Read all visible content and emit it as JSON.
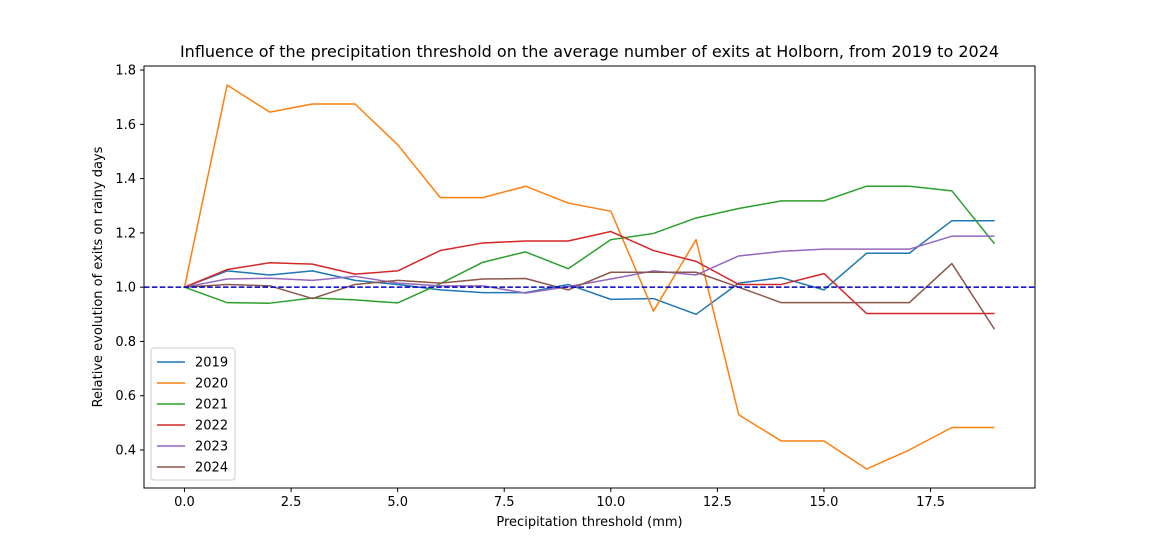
{
  "chart_data": {
    "type": "line",
    "title": "Influence of the precipitation threshold on the average number of exits at Holborn, from 2019 to 2024",
    "xlabel": "Precipitation threshold (mm)",
    "ylabel": "Relative evolution of exits on rainy days",
    "xlim": [
      -0.95,
      19.95
    ],
    "ylim": [
      0.26,
      1.815
    ],
    "x_ticks": [
      0.0,
      2.5,
      5.0,
      7.5,
      10.0,
      12.5,
      15.0,
      17.5
    ],
    "x_tick_labels": [
      "0.0",
      "2.5",
      "5.0",
      "7.5",
      "10.0",
      "12.5",
      "15.0",
      "17.5"
    ],
    "y_ticks": [
      0.4,
      0.6,
      0.8,
      1.0,
      1.2,
      1.4,
      1.6,
      1.8
    ],
    "y_tick_labels": [
      "0.4",
      "0.6",
      "0.8",
      "1.0",
      "1.2",
      "1.4",
      "1.6",
      "1.8"
    ],
    "grid": false,
    "legend_position": "lower-left",
    "reference_line": {
      "y": 1.0,
      "style": "dashed",
      "color": "#0000cc"
    },
    "x": [
      0,
      1,
      2,
      3,
      4,
      5,
      6,
      7,
      8,
      9,
      10,
      11,
      12,
      13,
      14,
      15,
      16,
      17,
      18,
      19
    ],
    "series": [
      {
        "name": "2019",
        "color": "#1f77b4",
        "values": [
          1.0,
          1.06,
          1.045,
          1.06,
          1.025,
          1.01,
          0.99,
          0.98,
          0.98,
          1.01,
          0.955,
          0.958,
          0.9,
          1.015,
          1.035,
          0.99,
          1.125,
          1.125,
          1.245,
          1.245
        ]
      },
      {
        "name": "2020",
        "color": "#ff7f0e",
        "values": [
          1.0,
          1.745,
          1.645,
          1.675,
          1.675,
          1.525,
          1.33,
          1.33,
          1.372,
          1.31,
          1.28,
          0.912,
          1.175,
          0.53,
          0.433,
          0.433,
          0.33,
          0.4,
          0.483,
          0.483
        ]
      },
      {
        "name": "2021",
        "color": "#2ca02c",
        "values": [
          1.0,
          0.943,
          0.941,
          0.96,
          0.953,
          0.942,
          1.013,
          1.092,
          1.13,
          1.068,
          1.175,
          1.198,
          1.255,
          1.29,
          1.318,
          1.318,
          1.372,
          1.372,
          1.355,
          1.16
        ]
      },
      {
        "name": "2022",
        "color": "#d62728",
        "values": [
          1.0,
          1.065,
          1.09,
          1.085,
          1.048,
          1.06,
          1.135,
          1.163,
          1.17,
          1.17,
          1.205,
          1.135,
          1.095,
          1.01,
          1.01,
          1.05,
          0.903,
          0.903,
          0.903,
          0.903
        ]
      },
      {
        "name": "2023",
        "color": "#9467bd",
        "values": [
          1.0,
          1.03,
          1.033,
          1.025,
          1.04,
          1.015,
          1.005,
          1.005,
          0.978,
          1.002,
          1.03,
          1.06,
          1.045,
          1.115,
          1.132,
          1.14,
          1.14,
          1.14,
          1.188,
          1.188
        ]
      },
      {
        "name": "2024",
        "color": "#8c564b",
        "values": [
          1.0,
          1.01,
          1.005,
          0.958,
          1.01,
          1.025,
          1.015,
          1.03,
          1.032,
          0.99,
          1.055,
          1.055,
          1.055,
          1.0,
          0.943,
          0.943,
          0.943,
          0.943,
          1.087,
          0.845
        ]
      }
    ]
  }
}
